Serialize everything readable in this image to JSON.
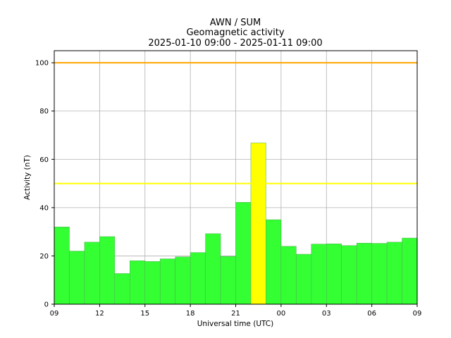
{
  "chart_data": {
    "type": "bar",
    "title_lines": [
      "AWN / SUM",
      "Geomagnetic activity",
      "2025-01-10 09:00 - 2025-01-11 09:00"
    ],
    "xlabel": "Universal time (UTC)",
    "ylabel": "Activity (nT)",
    "ylim": [
      0,
      105
    ],
    "xlim_hours": [
      0,
      24
    ],
    "x_tick_labels": [
      "09",
      "12",
      "15",
      "18",
      "21",
      "00",
      "03",
      "06",
      "09"
    ],
    "x_tick_hours": [
      0,
      3,
      6,
      9,
      12,
      15,
      18,
      21,
      24
    ],
    "y_ticks": [
      0,
      20,
      40,
      60,
      80,
      100
    ],
    "grid": true,
    "bar_start_hours": [
      0,
      1,
      2,
      3,
      4,
      5,
      6,
      7,
      8,
      9,
      10,
      11,
      12,
      13,
      14,
      15,
      16,
      17,
      18,
      19,
      20,
      21,
      22,
      23
    ],
    "values": [
      32,
      22,
      25.7,
      28,
      12.7,
      18,
      17.7,
      18.8,
      19.6,
      21.4,
      29.2,
      19.8,
      42.2,
      66.8,
      35,
      24,
      20.7,
      24.9,
      25,
      24.3,
      25.3,
      25.2,
      25.7,
      27.4
    ],
    "thresholds": [
      {
        "value": 100,
        "color": "#ffa500"
      },
      {
        "value": 50,
        "color": "#ffff00"
      }
    ],
    "colors": {
      "normal": "#33ff33",
      "elevated": "#ffff00",
      "grid": "#b0b0b0"
    }
  }
}
